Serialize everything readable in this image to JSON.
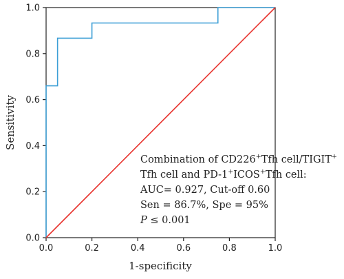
{
  "chart_data": {
    "type": "line",
    "xlabel": "1-specificity",
    "ylabel": "Sensitivity",
    "xlim": [
      0,
      1
    ],
    "ylim": [
      0,
      1
    ],
    "x_ticks": [
      "0.0",
      "0.2",
      "0.4",
      "0.6",
      "0.8",
      "1.0"
    ],
    "y_ticks": [
      "0.0",
      "0.2",
      "0.4",
      "0.6",
      "0.8",
      "1.0"
    ],
    "grid": false,
    "series": [
      {
        "color": "#3d9fd6",
        "points": [
          [
            0,
            0
          ],
          [
            0,
            0.66
          ],
          [
            0.05,
            0.66
          ],
          [
            0.05,
            0.867
          ],
          [
            0.2,
            0.867
          ],
          [
            0.2,
            0.933
          ],
          [
            0.75,
            0.933
          ],
          [
            0.75,
            1.0
          ],
          [
            1.0,
            1.0
          ]
        ]
      },
      {
        "color": "#e8342f",
        "points": [
          [
            0,
            0
          ],
          [
            1,
            1
          ]
        ]
      }
    ],
    "annotation": {
      "line1": {
        "t1": "Combination of CD226",
        "s1": "+",
        "t2": "Tfh cell/TIGIT",
        "s2": "+"
      },
      "line2": {
        "t1": "Tfh cell and PD-1",
        "s1": "+",
        "t2": "ICOS",
        "s2": "+",
        "t3": "Tfh cell:"
      },
      "line3": "AUC= 0.927, Cut-off 0.60",
      "line4": "Sen = 86.7%, Spe = 95%",
      "line5": {
        "p": "P",
        "rest": " ≤ 0.001"
      }
    }
  }
}
